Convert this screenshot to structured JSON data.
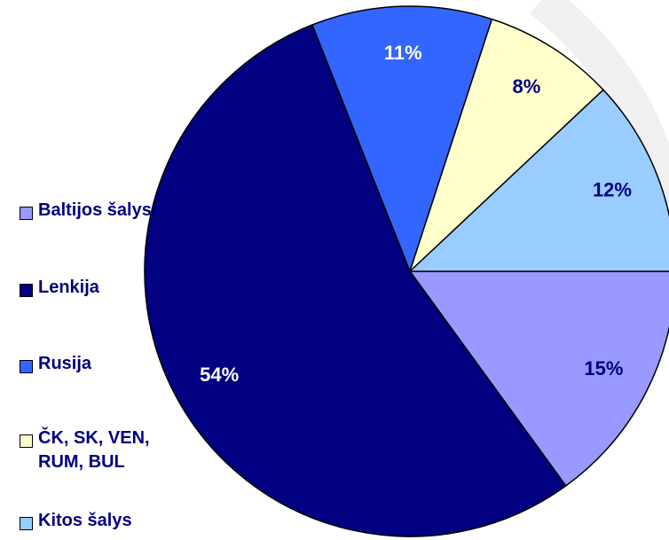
{
  "chart_data": {
    "type": "pie",
    "categories": [
      "Baltijos šalys",
      "Lenkija",
      "Rusija",
      "ČK, SK, VEN, RUM, BUL",
      "Kitos šalys"
    ],
    "values": [
      15,
      54,
      11,
      8,
      12
    ],
    "value_labels": [
      "15%",
      "54%",
      "11%",
      "8%",
      "12%"
    ],
    "colors": [
      "#9999ff",
      "#000080",
      "#3366ff",
      "#ffffcc",
      "#99ccff"
    ],
    "label_colors": [
      "#000080",
      "#ffffff",
      "#ffffff",
      "#000080",
      "#000080"
    ],
    "legend": "left"
  }
}
